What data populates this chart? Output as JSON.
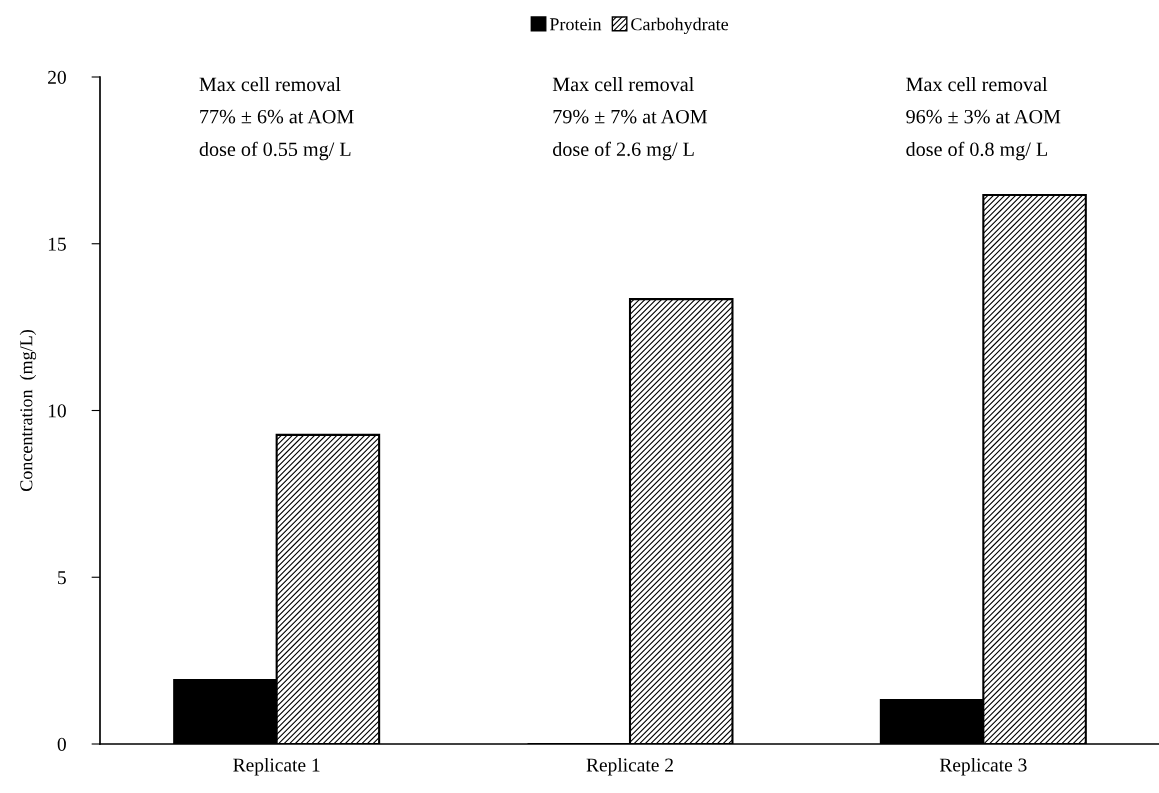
{
  "chart_data": {
    "type": "bar",
    "ylabel": "Concentration  (mg/L)",
    "categories": [
      "Replicate 1",
      "Replicate 2",
      "Replicate 3"
    ],
    "series": [
      {
        "name": "Protein",
        "color": "#000000",
        "values": [
          1.92,
          0,
          1.32
        ]
      },
      {
        "name": "Carbohydrate",
        "color": "#000000",
        "values": [
          9.27,
          13.34,
          16.46
        ]
      }
    ],
    "ylim": [
      0,
      20
    ],
    "yticks": [
      0,
      5,
      10,
      15,
      20
    ],
    "grid": false,
    "legend": "top",
    "annotations": [
      "Max cell removal\n77% ± 6% at AOM\ndose of 0.55 mg/ L",
      "Max cell removal\n79% ± 7% at AOM\ndose of 2.6 mg/ L",
      "Max cell removal\n96% ± 3% at AOM\ndose of 0.8 mg/ L"
    ]
  }
}
